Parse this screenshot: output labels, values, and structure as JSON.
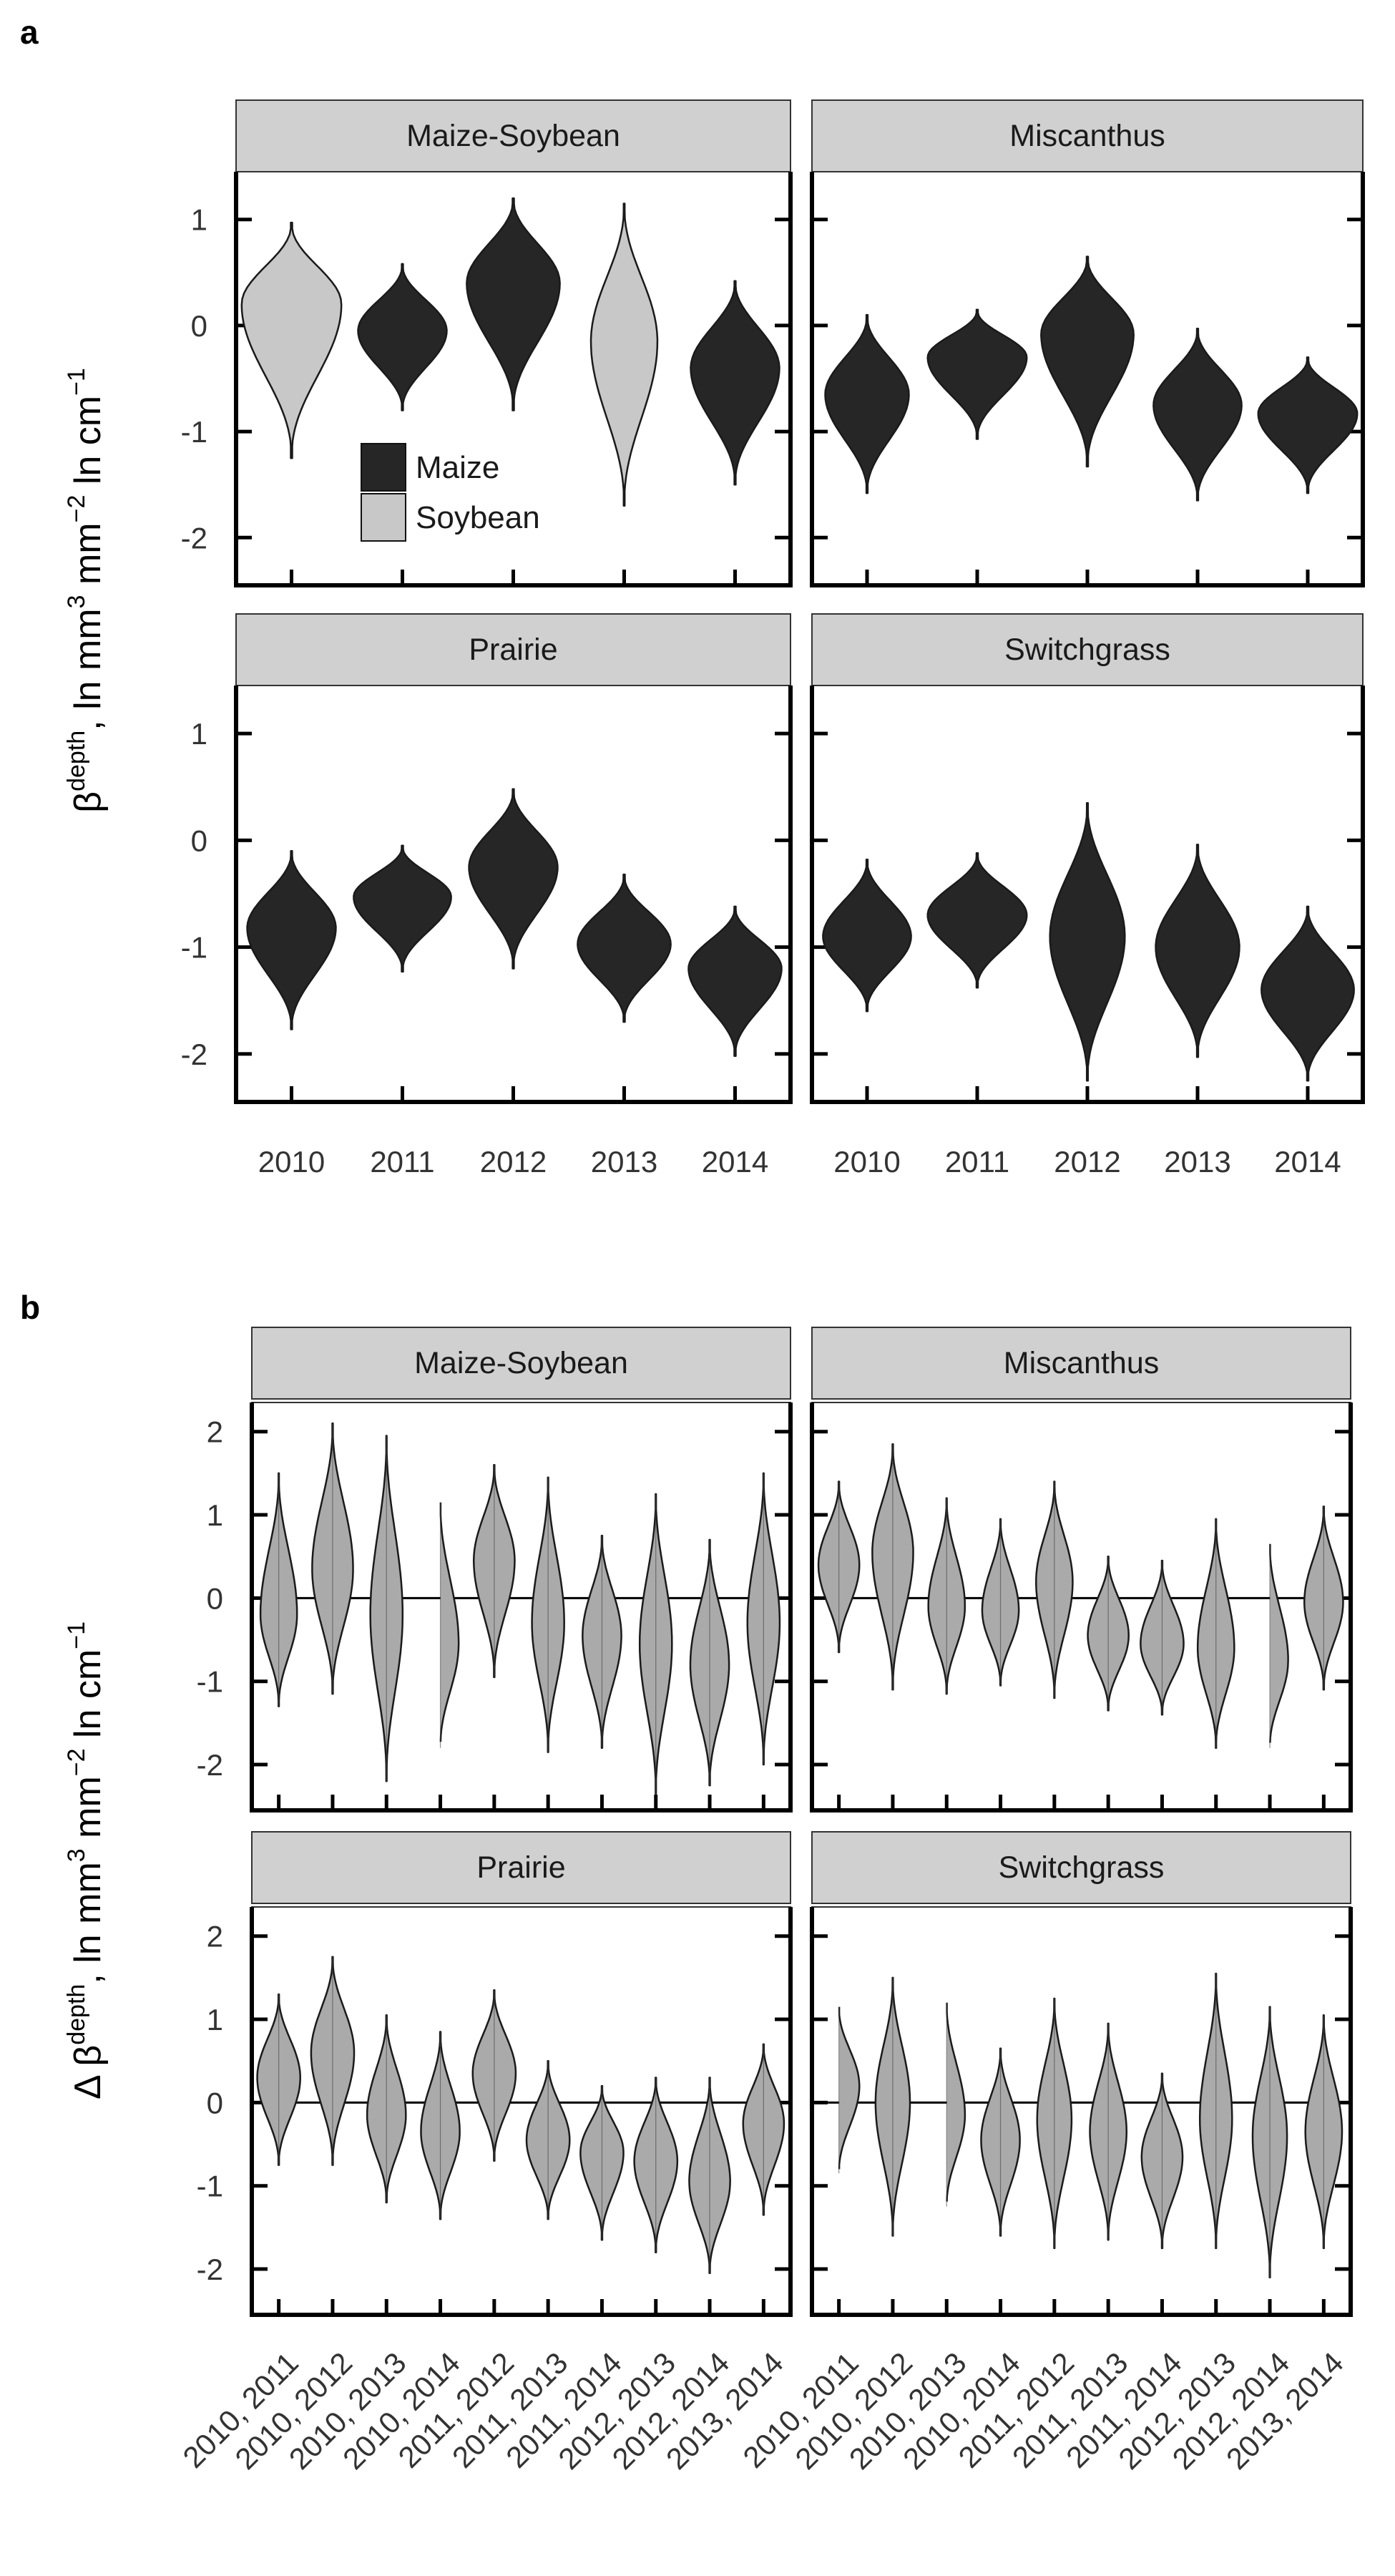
{
  "panel_labels": {
    "a": "a",
    "b": "b"
  },
  "colors": {
    "maize": "#262626",
    "soybean": "#c8c8c8",
    "difference": "#aaaaaa",
    "strip": "#d0d0d0",
    "outline": "#1a1a1a"
  },
  "chart_data": [
    {
      "panel": "a",
      "type": "violin",
      "ylabel": "β^depth, ln mm^3 mm^-2 ln cm^-1",
      "ylabel_parts": {
        "beta": "β",
        "sup_depth": "depth",
        "unit1": ", ln mm",
        "sup3": "3",
        "unit2": " mm",
        "supm2": "−2",
        "unit3": " ln cm",
        "supm1": "−1"
      },
      "ylim": [
        -2.45,
        1.45
      ],
      "yticks": [
        1,
        0,
        -1,
        -2
      ],
      "ytick_labels": [
        "1",
        "0",
        "-1",
        "-2"
      ],
      "categories": [
        "2010",
        "2011",
        "2012",
        "2013",
        "2014"
      ],
      "legend": {
        "placement": "inside Maize-Soybean facet, lower-left",
        "entries": [
          {
            "label": "Maize",
            "crop": "maize"
          },
          {
            "label": "Soybean",
            "crop": "soybean"
          }
        ]
      },
      "facets": [
        {
          "title": "Maize-Soybean",
          "violins": [
            {
              "x": "2010",
              "crop": "soybean",
              "center": 0.2,
              "min": -1.25,
              "max": 0.97,
              "width": 0.45
            },
            {
              "x": "2011",
              "crop": "maize",
              "center": -0.05,
              "min": -0.8,
              "max": 0.58,
              "width": 0.4
            },
            {
              "x": "2012",
              "crop": "maize",
              "center": 0.4,
              "min": -0.8,
              "max": 1.2,
              "width": 0.42
            },
            {
              "x": "2013",
              "crop": "soybean",
              "center": -0.15,
              "min": -1.7,
              "max": 1.15,
              "width": 0.3
            },
            {
              "x": "2014",
              "crop": "maize",
              "center": -0.4,
              "min": -1.5,
              "max": 0.42,
              "width": 0.4
            }
          ]
        },
        {
          "title": "Miscanthus",
          "violins": [
            {
              "x": "2010",
              "crop": "maize",
              "center": -0.65,
              "min": -1.58,
              "max": 0.1,
              "width": 0.38
            },
            {
              "x": "2011",
              "crop": "maize",
              "center": -0.3,
              "min": -1.07,
              "max": 0.15,
              "width": 0.45
            },
            {
              "x": "2012",
              "crop": "maize",
              "center": -0.08,
              "min": -1.33,
              "max": 0.65,
              "width": 0.42
            },
            {
              "x": "2013",
              "crop": "maize",
              "center": -0.75,
              "min": -1.65,
              "max": -0.03,
              "width": 0.4
            },
            {
              "x": "2014",
              "crop": "maize",
              "center": -0.83,
              "min": -1.58,
              "max": -0.3,
              "width": 0.45
            }
          ]
        },
        {
          "title": "Prairie",
          "violins": [
            {
              "x": "2010",
              "crop": "maize",
              "center": -0.82,
              "min": -1.77,
              "max": -0.1,
              "width": 0.4
            },
            {
              "x": "2011",
              "crop": "maize",
              "center": -0.53,
              "min": -1.23,
              "max": -0.05,
              "width": 0.44
            },
            {
              "x": "2012",
              "crop": "maize",
              "center": -0.25,
              "min": -1.2,
              "max": 0.48,
              "width": 0.4
            },
            {
              "x": "2013",
              "crop": "maize",
              "center": -0.97,
              "min": -1.7,
              "max": -0.32,
              "width": 0.42
            },
            {
              "x": "2014",
              "crop": "maize",
              "center": -1.2,
              "min": -2.02,
              "max": -0.62,
              "width": 0.42
            }
          ]
        },
        {
          "title": "Switchgrass",
          "violins": [
            {
              "x": "2010",
              "crop": "maize",
              "center": -0.9,
              "min": -1.6,
              "max": -0.18,
              "width": 0.4
            },
            {
              "x": "2011",
              "crop": "maize",
              "center": -0.7,
              "min": -1.38,
              "max": -0.12,
              "width": 0.45
            },
            {
              "x": "2012",
              "crop": "maize",
              "center": -0.9,
              "min": -2.25,
              "max": 0.35,
              "width": 0.34
            },
            {
              "x": "2013",
              "crop": "maize",
              "center": -1.0,
              "min": -2.03,
              "max": -0.04,
              "width": 0.38
            },
            {
              "x": "2014",
              "crop": "maize",
              "center": -1.4,
              "min": -2.25,
              "max": -0.62,
              "width": 0.42
            }
          ]
        }
      ]
    },
    {
      "panel": "b",
      "type": "violin",
      "ylabel": "Δ β^depth, ln mm^3 mm^-2 ln cm^-1",
      "ylabel_parts": {
        "beta": "Δ β",
        "sup_depth": "depth",
        "unit1": ", ln mm",
        "sup3": "3",
        "unit2": " mm",
        "supm2": "−2",
        "unit3": " ln cm",
        "supm1": "−1"
      },
      "ylim": [
        -2.55,
        2.35
      ],
      "yticks": [
        2,
        1,
        0,
        -1,
        -2
      ],
      "ytick_labels": [
        "2",
        "1",
        "0",
        "-1",
        "-2"
      ],
      "reference_line": 0,
      "categories": [
        "2010, 2011",
        "2010, 2012",
        "2010, 2013",
        "2010, 2014",
        "2011, 2012",
        "2011, 2013",
        "2011, 2014",
        "2012, 2013",
        "2012, 2014",
        "2013, 2014"
      ],
      "facets": [
        {
          "title": "Maize-Soybean",
          "violins": [
            {
              "x": "2010, 2011",
              "center": -0.2,
              "min": -1.3,
              "max": 1.5,
              "width": 0.34
            },
            {
              "x": "2010, 2012",
              "center": 0.35,
              "min": -1.15,
              "max": 2.1,
              "width": 0.38
            },
            {
              "x": "2010, 2013",
              "center": -0.2,
              "min": -2.2,
              "max": 1.95,
              "width": 0.3
            },
            {
              "x": "2010, 2014",
              "center": -0.55,
              "min": -1.8,
              "max": 1.15,
              "width": 0.34
            },
            {
              "x": "2011, 2012",
              "center": 0.45,
              "min": -0.95,
              "max": 1.6,
              "width": 0.38
            },
            {
              "x": "2011, 2013",
              "center": -0.3,
              "min": -1.85,
              "max": 1.45,
              "width": 0.3
            },
            {
              "x": "2011, 2014",
              "center": -0.45,
              "min": -1.8,
              "max": 0.75,
              "width": 0.36
            },
            {
              "x": "2012, 2013",
              "center": -0.55,
              "min": -2.35,
              "max": 1.25,
              "width": 0.3
            },
            {
              "x": "2012, 2014",
              "center": -0.8,
              "min": -2.25,
              "max": 0.7,
              "width": 0.36
            },
            {
              "x": "2013, 2014",
              "center": -0.3,
              "min": -2.0,
              "max": 1.5,
              "width": 0.3
            }
          ]
        },
        {
          "title": "Miscanthus",
          "violins": [
            {
              "x": "2010, 2011",
              "center": 0.4,
              "min": -0.65,
              "max": 1.4,
              "width": 0.38
            },
            {
              "x": "2010, 2012",
              "center": 0.55,
              "min": -1.1,
              "max": 1.85,
              "width": 0.38
            },
            {
              "x": "2010, 2013",
              "center": -0.1,
              "min": -1.15,
              "max": 1.2,
              "width": 0.34
            },
            {
              "x": "2010, 2014",
              "center": -0.15,
              "min": -1.05,
              "max": 0.95,
              "width": 0.34
            },
            {
              "x": "2011, 2012",
              "center": 0.2,
              "min": -1.2,
              "max": 1.4,
              "width": 0.34
            },
            {
              "x": "2011, 2013",
              "center": -0.45,
              "min": -1.35,
              "max": 0.5,
              "width": 0.38
            },
            {
              "x": "2011, 2014",
              "center": -0.55,
              "min": -1.4,
              "max": 0.45,
              "width": 0.4
            },
            {
              "x": "2012, 2013",
              "center": -0.6,
              "min": -1.8,
              "max": 0.95,
              "width": 0.34
            },
            {
              "x": "2012, 2014",
              "center": -0.75,
              "min": -1.8,
              "max": 0.65,
              "width": 0.34
            },
            {
              "x": "2013, 2014",
              "center": -0.05,
              "min": -1.1,
              "max": 1.1,
              "width": 0.36
            }
          ]
        },
        {
          "title": "Prairie",
          "violins": [
            {
              "x": "2010, 2011",
              "center": 0.3,
              "min": -0.75,
              "max": 1.3,
              "width": 0.4
            },
            {
              "x": "2010, 2012",
              "center": 0.6,
              "min": -0.75,
              "max": 1.75,
              "width": 0.4
            },
            {
              "x": "2010, 2013",
              "center": -0.15,
              "min": -1.2,
              "max": 1.05,
              "width": 0.36
            },
            {
              "x": "2010, 2014",
              "center": -0.35,
              "min": -1.4,
              "max": 0.85,
              "width": 0.36
            },
            {
              "x": "2011, 2012",
              "center": 0.35,
              "min": -0.7,
              "max": 1.35,
              "width": 0.4
            },
            {
              "x": "2011, 2013",
              "center": -0.45,
              "min": -1.4,
              "max": 0.5,
              "width": 0.4
            },
            {
              "x": "2011, 2014",
              "center": -0.6,
              "min": -1.65,
              "max": 0.2,
              "width": 0.4
            },
            {
              "x": "2012, 2013",
              "center": -0.7,
              "min": -1.8,
              "max": 0.3,
              "width": 0.4
            },
            {
              "x": "2012, 2014",
              "center": -0.95,
              "min": -2.05,
              "max": 0.3,
              "width": 0.38
            },
            {
              "x": "2013, 2014",
              "center": -0.25,
              "min": -1.35,
              "max": 0.7,
              "width": 0.38
            }
          ]
        },
        {
          "title": "Switchgrass",
          "violins": [
            {
              "x": "2010, 2011",
              "center": 0.2,
              "min": -0.85,
              "max": 1.15,
              "width": 0.38
            },
            {
              "x": "2010, 2012",
              "center": 0.0,
              "min": -1.6,
              "max": 1.5,
              "width": 0.32
            },
            {
              "x": "2010, 2013",
              "center": -0.15,
              "min": -1.25,
              "max": 1.2,
              "width": 0.34
            },
            {
              "x": "2010, 2014",
              "center": -0.45,
              "min": -1.6,
              "max": 0.65,
              "width": 0.36
            },
            {
              "x": "2011, 2012",
              "center": -0.2,
              "min": -1.75,
              "max": 1.25,
              "width": 0.32
            },
            {
              "x": "2011, 2013",
              "center": -0.35,
              "min": -1.65,
              "max": 0.95,
              "width": 0.34
            },
            {
              "x": "2011, 2014",
              "center": -0.65,
              "min": -1.75,
              "max": 0.35,
              "width": 0.38
            },
            {
              "x": "2012, 2013",
              "center": -0.2,
              "min": -1.75,
              "max": 1.55,
              "width": 0.3
            },
            {
              "x": "2012, 2014",
              "center": -0.4,
              "min": -2.1,
              "max": 1.15,
              "width": 0.32
            },
            {
              "x": "2013, 2014",
              "center": -0.35,
              "min": -1.75,
              "max": 1.05,
              "width": 0.34
            }
          ]
        }
      ]
    }
  ]
}
